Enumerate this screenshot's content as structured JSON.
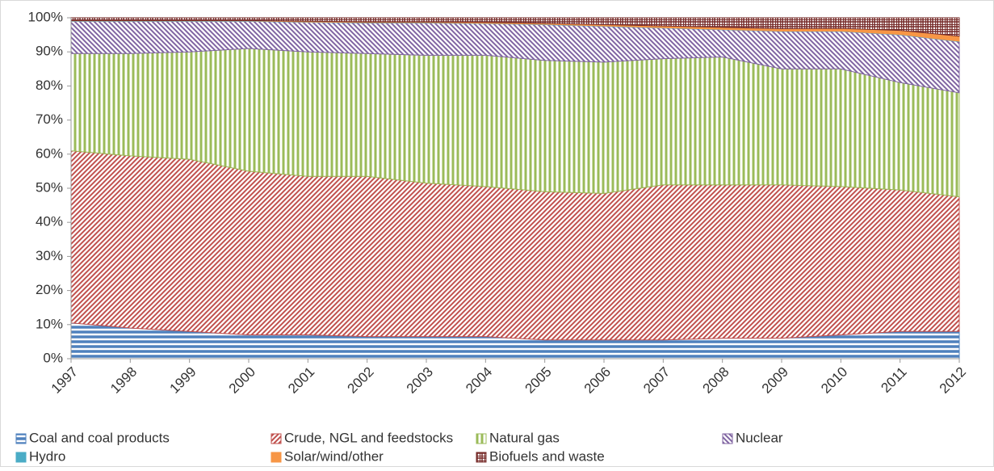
{
  "chart_data": {
    "type": "stacked_area",
    "categories": [
      "1997",
      "1998",
      "1999",
      "2000",
      "2001",
      "2002",
      "2003",
      "2004",
      "2005",
      "2006",
      "2007",
      "2008",
      "2009",
      "2010",
      "2011",
      "2012"
    ],
    "series": [
      {
        "name": "Coal and coal products",
        "color": "#4f81bd",
        "pattern": "horizontal",
        "values": [
          10.5,
          9,
          8,
          7,
          7,
          6.5,
          6.5,
          6.5,
          5.5,
          5.5,
          5.5,
          6,
          6,
          7,
          8,
          8
        ]
      },
      {
        "name": "Crude, NGL and feedstocks",
        "color": "#c0504d",
        "pattern": "diagonal",
        "values": [
          50.5,
          50.5,
          50.5,
          48,
          46.5,
          47,
          45,
          44,
          43.5,
          43,
          45.5,
          45,
          45,
          43.5,
          41.5,
          39.5
        ]
      },
      {
        "name": "Natural gas",
        "color": "#9bbb59",
        "pattern": "vertical",
        "values": [
          28.5,
          30,
          31.5,
          36,
          36.5,
          36,
          37.5,
          38.5,
          38.5,
          38.5,
          37,
          37.5,
          34,
          34.5,
          31.5,
          30.5
        ]
      },
      {
        "name": "Nuclear",
        "color": "#8064a2",
        "pattern": "antidiagonal",
        "values": [
          9.5,
          9.5,
          9,
          8,
          8.7,
          9,
          9.5,
          9.3,
          10.5,
          10.5,
          9,
          8,
          11,
          11,
          14,
          15
        ]
      },
      {
        "name": "Hydro",
        "color": "#4bacc6",
        "pattern": "solid",
        "values": [
          0.1,
          0.1,
          0.1,
          0.1,
          0.1,
          0.1,
          0.1,
          0.1,
          0.1,
          0.1,
          0.1,
          0.1,
          0.1,
          0.1,
          0.1,
          0.1
        ]
      },
      {
        "name": "Solar/wind/other",
        "color": "#f79646",
        "pattern": "solid",
        "values": [
          0.1,
          0.1,
          0.1,
          0.1,
          0.2,
          0.2,
          0.2,
          0.3,
          0.3,
          0.4,
          0.5,
          0.6,
          0.7,
          0.8,
          1.2,
          1.5
        ]
      },
      {
        "name": "Biofuels and waste",
        "color": "#772c2a",
        "pattern": "grid",
        "values": [
          0.8,
          0.8,
          0.8,
          0.8,
          1.0,
          1.2,
          1.2,
          1.3,
          1.6,
          2.0,
          2.4,
          2.8,
          3.2,
          3.1,
          3.7,
          5.4
        ]
      }
    ],
    "ylim": [
      0,
      100
    ],
    "yticks": [
      {
        "value": 0,
        "label": "0%"
      },
      {
        "value": 10,
        "label": "10%"
      },
      {
        "value": 20,
        "label": "20%"
      },
      {
        "value": 30,
        "label": "30%"
      },
      {
        "value": 40,
        "label": "40%"
      },
      {
        "value": 50,
        "label": "50%"
      },
      {
        "value": 60,
        "label": "60%"
      },
      {
        "value": 70,
        "label": "70%"
      },
      {
        "value": 80,
        "label": "80%"
      },
      {
        "value": 90,
        "label": "90%"
      },
      {
        "value": 100,
        "label": "100%"
      }
    ],
    "legend": "bottom"
  }
}
